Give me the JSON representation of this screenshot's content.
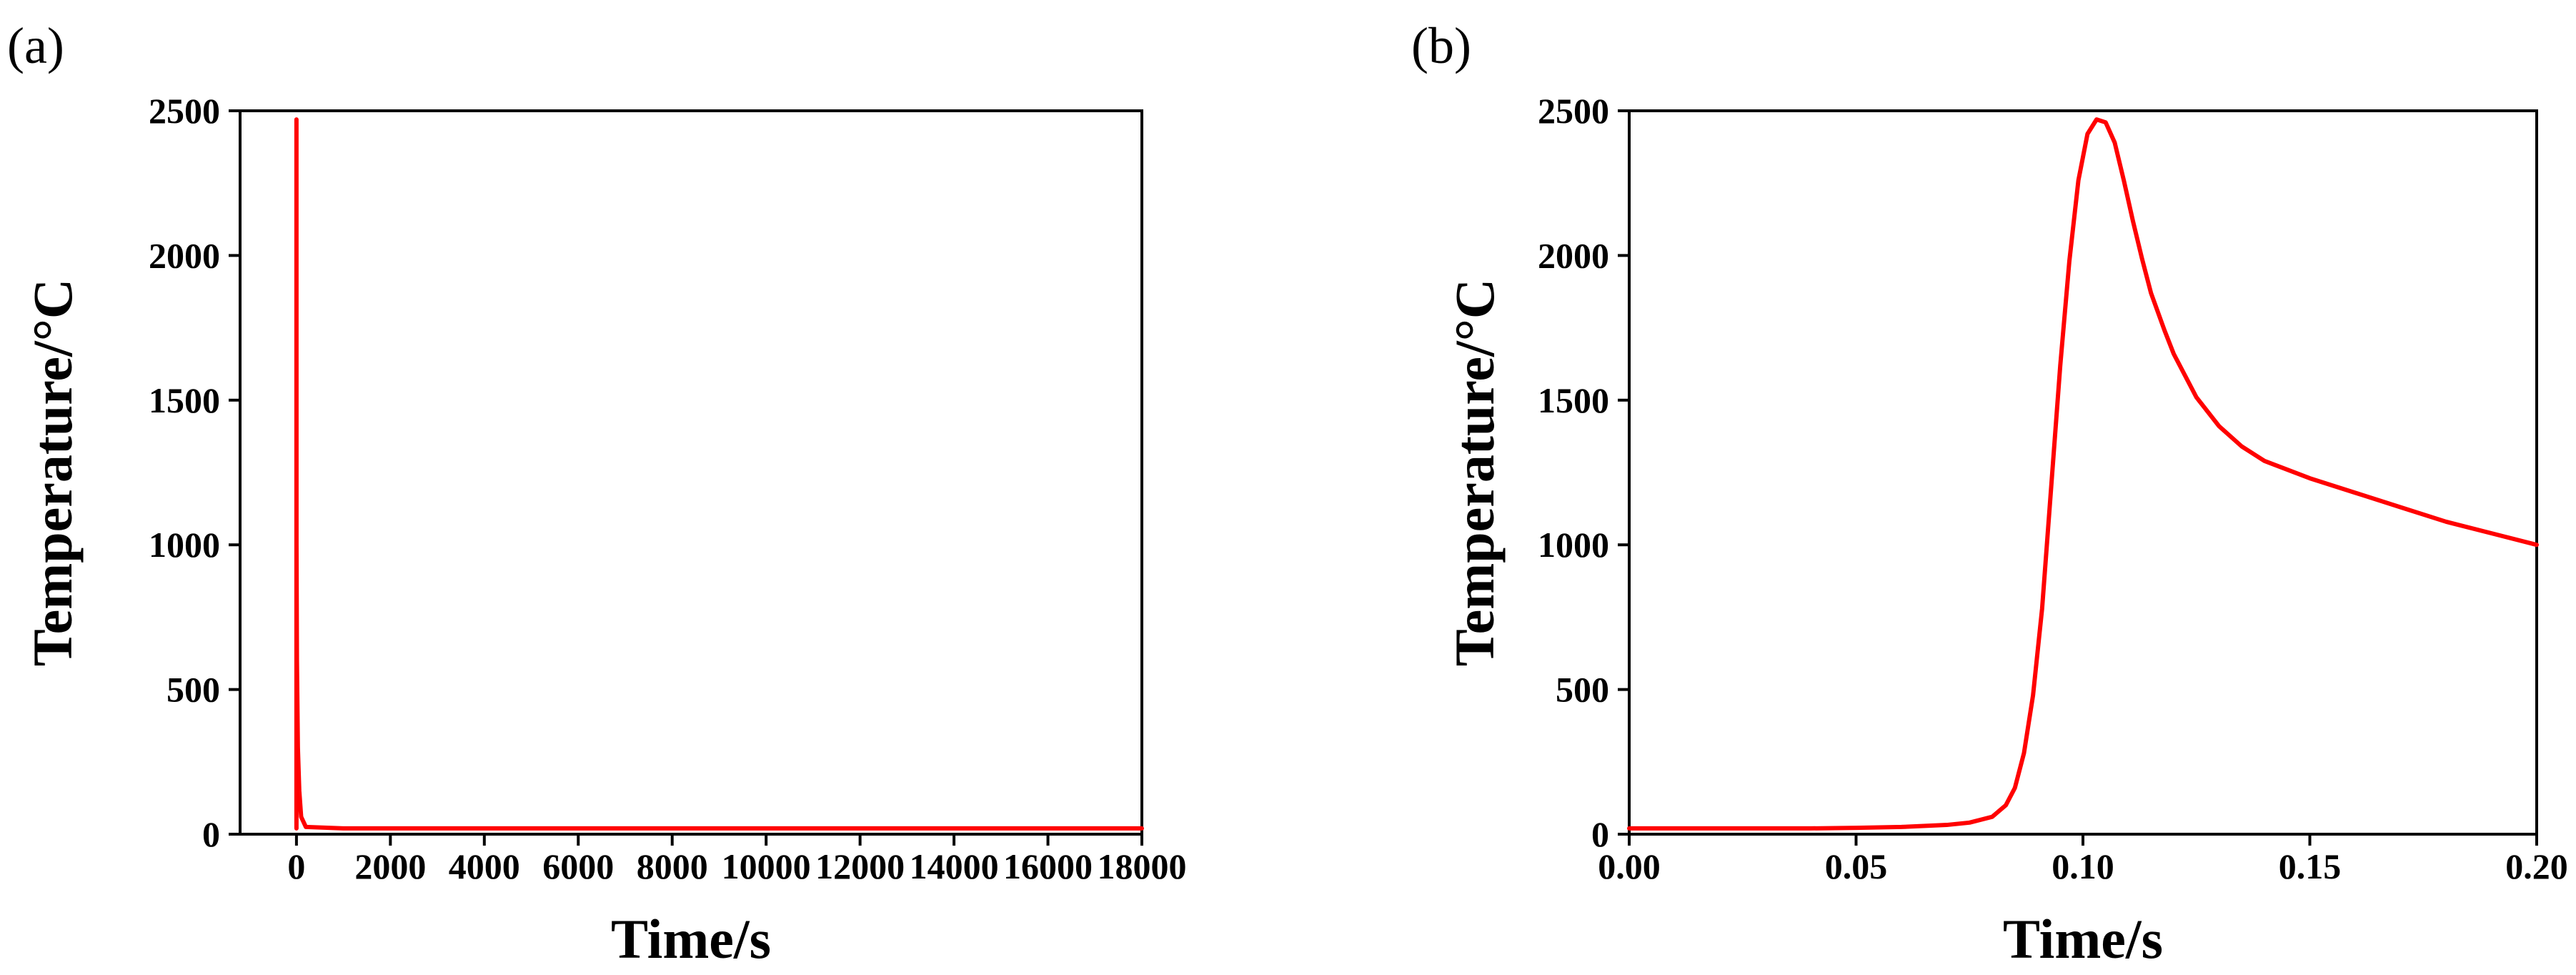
{
  "colors": {
    "series": "#ff0000",
    "axis": "#000000",
    "background": "#ffffff"
  },
  "chart_data": [
    {
      "type": "line",
      "panel_label": "(a)",
      "xlabel": "Time/s",
      "ylabel": "Temperature/°C",
      "xlim": [
        -1200,
        18000
      ],
      "ylim": [
        0,
        2500
      ],
      "xticks": [
        0,
        2000,
        4000,
        6000,
        8000,
        10000,
        12000,
        14000,
        16000,
        18000
      ],
      "xtick_labels": [
        "0",
        "2000",
        "4000",
        "6000",
        "8000",
        "10000",
        "12000",
        "14000",
        "16000",
        "18000"
      ],
      "yticks": [
        0,
        500,
        1000,
        1500,
        2000,
        2500
      ],
      "ytick_labels": [
        "0",
        "500",
        "1000",
        "1500",
        "2000",
        "2500"
      ],
      "grid": false,
      "series": [
        {
          "color": "#ff0000",
          "x": [
            0,
            0.1,
            1,
            10,
            30,
            60,
            100,
            200,
            1000,
            5000,
            10000,
            18000
          ],
          "y": [
            20,
            2470,
            1000,
            600,
            300,
            150,
            60,
            25,
            20,
            20,
            20,
            20
          ]
        }
      ]
    },
    {
      "type": "line",
      "panel_label": "(b)",
      "xlabel": "Time/s",
      "ylabel": "Temperature/°C",
      "xlim": [
        0,
        0.2
      ],
      "ylim": [
        0,
        2500
      ],
      "xticks": [
        0,
        0.05,
        0.1,
        0.15,
        0.2
      ],
      "xtick_labels": [
        "0.00",
        "0.05",
        "0.10",
        "0.15",
        "0.20"
      ],
      "yticks": [
        0,
        500,
        1000,
        1500,
        2000,
        2500
      ],
      "ytick_labels": [
        "0",
        "500",
        "1000",
        "1500",
        "2000",
        "2500"
      ],
      "grid": false,
      "series": [
        {
          "color": "#ff0000",
          "x": [
            0,
            0.02,
            0.04,
            0.05,
            0.06,
            0.07,
            0.075,
            0.08,
            0.083,
            0.085,
            0.087,
            0.089,
            0.091,
            0.093,
            0.095,
            0.097,
            0.099,
            0.101,
            0.103,
            0.105,
            0.107,
            0.109,
            0.111,
            0.113,
            0.115,
            0.118,
            0.12,
            0.125,
            0.13,
            0.135,
            0.14,
            0.15,
            0.16,
            0.17,
            0.18,
            0.19,
            0.2
          ],
          "y": [
            20,
            20,
            20,
            22,
            25,
            32,
            40,
            60,
            100,
            160,
            280,
            480,
            780,
            1200,
            1620,
            1980,
            2260,
            2420,
            2470,
            2460,
            2390,
            2260,
            2120,
            1990,
            1870,
            1740,
            1660,
            1510,
            1410,
            1340,
            1290,
            1230,
            1180,
            1130,
            1080,
            1040,
            1000
          ]
        }
      ]
    }
  ]
}
